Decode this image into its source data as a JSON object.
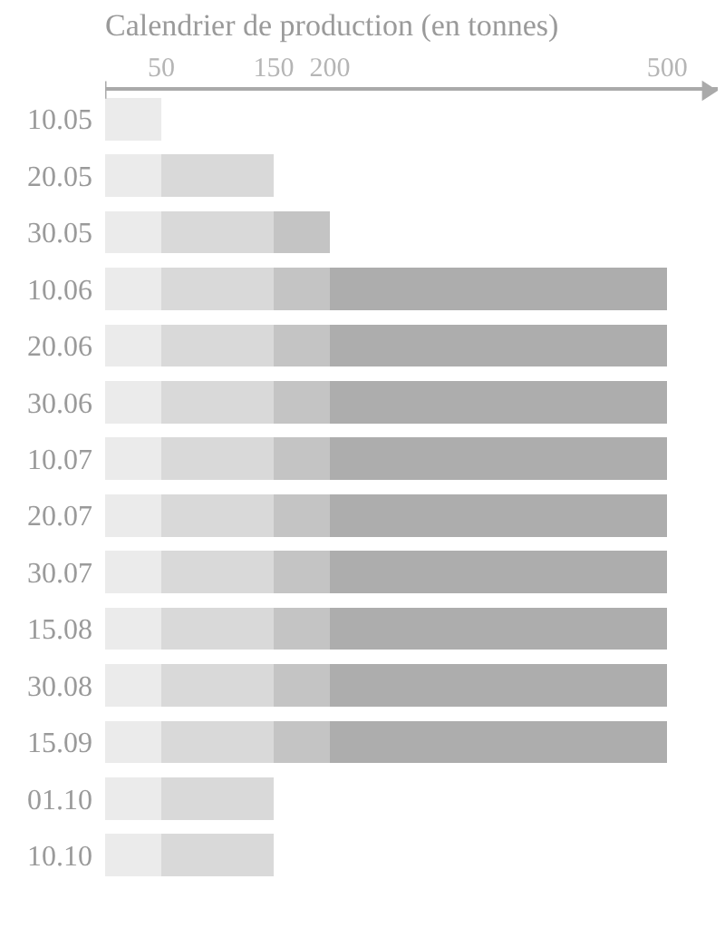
{
  "chart_data": {
    "type": "bar",
    "orientation": "horizontal",
    "stacked": true,
    "title": "Calendrier de production (en tonnes)",
    "categories": [
      "10.05",
      "20.05",
      "30.05",
      "10.06",
      "20.06",
      "30.06",
      "10.07",
      "20.07",
      "30.07",
      "15.08",
      "30.08",
      "15.09",
      "01.10",
      "10.10"
    ],
    "series": [
      {
        "color": "#ebebeb",
        "values": [
          50,
          50,
          50,
          50,
          50,
          50,
          50,
          50,
          50,
          50,
          50,
          50,
          50,
          50
        ]
      },
      {
        "color": "#d9d9d9",
        "values": [
          null,
          100,
          100,
          100,
          100,
          100,
          100,
          100,
          100,
          100,
          100,
          100,
          100,
          100
        ]
      },
      {
        "color": "#c4c4c4",
        "values": [
          null,
          null,
          50,
          50,
          50,
          50,
          50,
          50,
          50,
          50,
          50,
          50,
          null,
          null
        ]
      },
      {
        "color": "#adadad",
        "values": [
          null,
          null,
          null,
          300,
          300,
          300,
          300,
          300,
          300,
          300,
          300,
          300,
          null,
          null
        ]
      }
    ],
    "xlim": [
      0,
      545
    ],
    "xticks": [
      50,
      150,
      200,
      500
    ],
    "grid": false
  }
}
